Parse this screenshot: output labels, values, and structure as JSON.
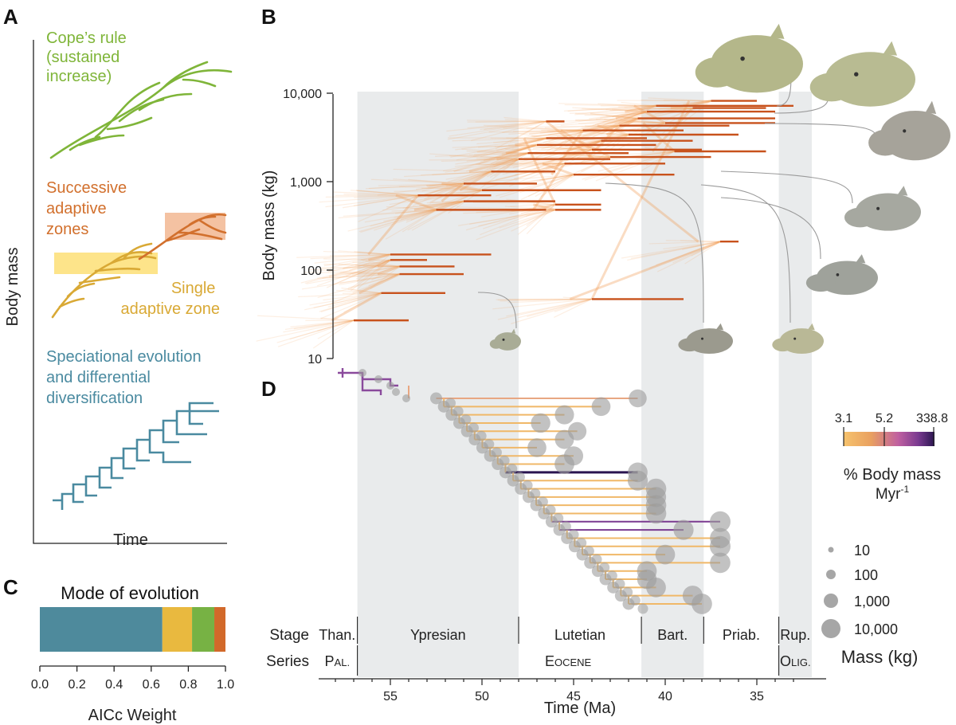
{
  "panel_labels": {
    "a": "A",
    "b": "B",
    "c": "C",
    "d": "D"
  },
  "panel_a": {
    "ylabel": "Body mass",
    "xlabel": "Time",
    "modes": [
      {
        "lines": [
          "Cope’s rule",
          "(sustained",
          "increase)"
        ],
        "color": "#7fb539"
      },
      {
        "lines": [
          "Successive",
          "adaptive",
          "zones"
        ],
        "color": "#d2702d"
      },
      {
        "lines": [
          "Single",
          "adaptive zone"
        ],
        "color": "#d9a935"
      },
      {
        "lines": [
          "Speciational evolution",
          "and differential",
          "diversification"
        ],
        "color": "#4a8aa0"
      }
    ]
  },
  "chart_data": [
    {
      "panel": "C",
      "type": "bar",
      "title": "Mode of evolution",
      "xlabel": "AICc Weight",
      "xlim": [
        0,
        1
      ],
      "xticks": [
        "0.0",
        "0.2",
        "0.4",
        "0.6",
        "0.8",
        "1.0"
      ],
      "segments": [
        {
          "mode": "speciational",
          "value": 0.66,
          "color": "#4e8a9c"
        },
        {
          "mode": "single adaptive zone",
          "value": 0.16,
          "color": "#e9b93f"
        },
        {
          "mode": "cope's rule",
          "value": 0.12,
          "color": "#77b244"
        },
        {
          "mode": "successive adaptive zones",
          "value": 0.06,
          "color": "#d2692a"
        }
      ]
    },
    {
      "panel": "B",
      "type": "line",
      "ylabel": "Body mass (kg)",
      "yscale": "log",
      "ylim": [
        10,
        10000
      ],
      "yticks": [
        "10",
        "100",
        "1,000",
        "10,000"
      ],
      "xlim_Ma": [
        59,
        32
      ],
      "series_color": "#c8521c",
      "density_color": "#f29a52",
      "taxa_ranges": [
        {
          "start": 57.0,
          "end": 54.0,
          "mass": 27
        },
        {
          "start": 55.5,
          "end": 52.0,
          "mass": 55
        },
        {
          "start": 54.5,
          "end": 51.0,
          "mass": 90
        },
        {
          "start": 54.5,
          "end": 51.5,
          "mass": 110
        },
        {
          "start": 55.0,
          "end": 53.0,
          "mass": 130
        },
        {
          "start": 55.0,
          "end": 49.5,
          "mass": 150
        },
        {
          "start": 53.5,
          "end": 49.5,
          "mass": 700
        },
        {
          "start": 52.5,
          "end": 46.5,
          "mass": 480
        },
        {
          "start": 51.0,
          "end": 46.0,
          "mass": 600
        },
        {
          "start": 51.0,
          "end": 47.0,
          "mass": 950
        },
        {
          "start": 50.0,
          "end": 43.5,
          "mass": 800
        },
        {
          "start": 49.5,
          "end": 46.0,
          "mass": 1300
        },
        {
          "start": 48.0,
          "end": 43.0,
          "mass": 1800
        },
        {
          "start": 47.5,
          "end": 42.0,
          "mass": 2100
        },
        {
          "start": 47.0,
          "end": 40.5,
          "mass": 2600
        },
        {
          "start": 46.5,
          "end": 41.0,
          "mass": 3100
        },
        {
          "start": 46.0,
          "end": 43.5,
          "mass": 550
        },
        {
          "start": 46.0,
          "end": 43.5,
          "mass": 480
        },
        {
          "start": 45.5,
          "end": 40.0,
          "mass": 1600
        },
        {
          "start": 45.0,
          "end": 39.5,
          "mass": 1200
        },
        {
          "start": 44.5,
          "end": 39.0,
          "mass": 3800
        },
        {
          "start": 44.0,
          "end": 38.0,
          "mass": 2300
        },
        {
          "start": 43.5,
          "end": 38.5,
          "mass": 2900
        },
        {
          "start": 43.0,
          "end": 37.5,
          "mass": 1900
        },
        {
          "start": 42.5,
          "end": 36.5,
          "mass": 4300
        },
        {
          "start": 42.0,
          "end": 36.0,
          "mass": 3400
        },
        {
          "start": 41.5,
          "end": 34.0,
          "mass": 5200
        },
        {
          "start": 41.0,
          "end": 34.0,
          "mass": 6200
        },
        {
          "start": 40.5,
          "end": 33.0,
          "mass": 7200
        },
        {
          "start": 40.0,
          "end": 34.0,
          "mass": 4600
        },
        {
          "start": 39.5,
          "end": 34.5,
          "mass": 2200
        },
        {
          "start": 38.5,
          "end": 34.5,
          "mass": 6800
        },
        {
          "start": 37.5,
          "end": 35.0,
          "mass": 8200
        },
        {
          "start": 44.0,
          "end": 39.0,
          "mass": 47
        },
        {
          "start": 37.0,
          "end": 36.0,
          "mass": 210
        },
        {
          "start": 46.5,
          "end": 45.5,
          "mass": 4800
        }
      ]
    },
    {
      "panel": "D",
      "type": "scatter",
      "xlabel": "Time (Ma)",
      "xticks": [
        "55",
        "50",
        "45",
        "40",
        "35"
      ],
      "xlim": [
        59,
        32
      ],
      "colorbar": {
        "label_line1": "% Body mass",
        "label_line2": "Myr",
        "label_sup": "-1",
        "ticks": [
          "3.1",
          "5.2",
          "338.8"
        ],
        "colors": [
          "#f6c36d",
          "#e9a060",
          "#c060a0",
          "#7a3a90",
          "#2a1550"
        ]
      },
      "size_legend": {
        "title": "Mass (kg)",
        "items": [
          "10",
          "100",
          "1,000",
          "10,000"
        ]
      },
      "tips": [
        {
          "x": 41.5,
          "mass": 1500
        },
        {
          "x": 43.5,
          "mass": 2500
        },
        {
          "x": 45.5,
          "mass": 3000
        },
        {
          "x": 46.8,
          "mass": 3500
        },
        {
          "x": 44.8,
          "mass": 2000
        },
        {
          "x": 45.5,
          "mass": 2800
        },
        {
          "x": 47.0,
          "mass": 2500
        },
        {
          "x": 45.0,
          "mass": 3000
        },
        {
          "x": 45.5,
          "mass": 4000
        },
        {
          "x": 41.5,
          "mass": 4000
        },
        {
          "x": 41.5,
          "mass": 5000
        },
        {
          "x": 40.5,
          "mass": 6000
        },
        {
          "x": 40.5,
          "mass": 5000
        },
        {
          "x": 40.5,
          "mass": 6000
        },
        {
          "x": 40.5,
          "mass": 6000
        },
        {
          "x": 37.0,
          "mass": 7000
        },
        {
          "x": 39.0,
          "mass": 5000
        },
        {
          "x": 37.0,
          "mass": 6000
        },
        {
          "x": 37.0,
          "mass": 7000
        },
        {
          "x": 40.0,
          "mass": 4000
        },
        {
          "x": 37.0,
          "mass": 6000
        },
        {
          "x": 41.0,
          "mass": 4000
        },
        {
          "x": 41.0,
          "mass": 3500
        },
        {
          "x": 40.5,
          "mass": 4000
        },
        {
          "x": 38.5,
          "mass": 5000
        },
        {
          "x": 38.0,
          "mass": 6000
        }
      ]
    }
  ],
  "stages": {
    "row_label": "Stage",
    "items": [
      {
        "name": "Than.",
        "start": 59.0,
        "end": 56.8
      },
      {
        "name": "Ypresian",
        "start": 56.8,
        "end": 48.0
      },
      {
        "name": "Lutetian",
        "start": 48.0,
        "end": 41.3
      },
      {
        "name": "Bart.",
        "start": 41.3,
        "end": 37.9
      },
      {
        "name": "Priab.",
        "start": 37.9,
        "end": 33.8
      },
      {
        "name": "Rup.",
        "start": 33.8,
        "end": 32.0
      }
    ]
  },
  "series": {
    "row_label": "Series",
    "items": [
      {
        "first": "P",
        "rest": "AL.",
        "start": 59.0,
        "end": 56.8
      },
      {
        "first": "E",
        "rest": "OCENE",
        "start": 56.8,
        "end": 33.8
      },
      {
        "first": "O",
        "rest": "LIG.",
        "start": 33.8,
        "end": 32.0
      }
    ]
  }
}
